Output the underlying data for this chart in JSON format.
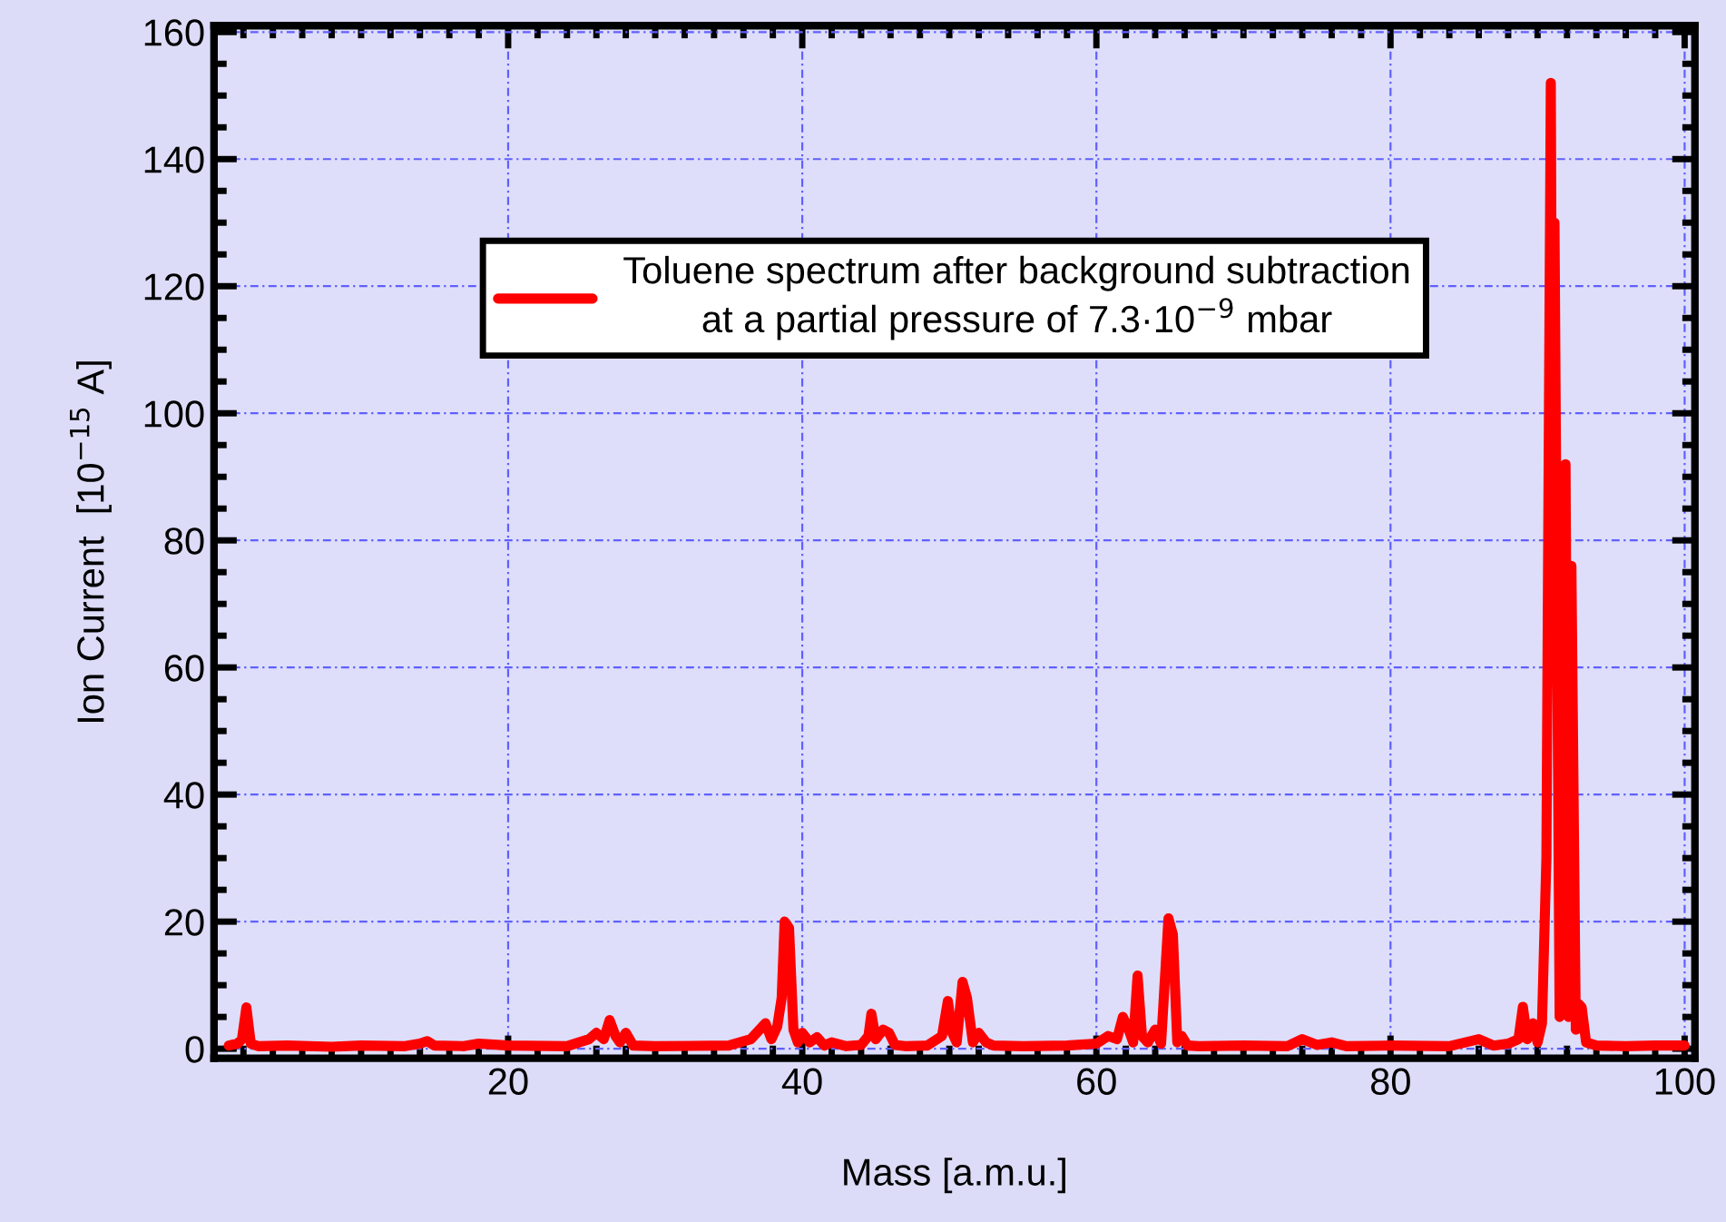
{
  "chart_data": {
    "type": "line",
    "xlabel": "Mass [a.m.u.]",
    "ylabel": "Ion Current  [10$^{−15}$ A]",
    "xlim": [
      0,
      100.7
    ],
    "ylim": [
      -1.5,
      161
    ],
    "xticks": [
      20,
      40,
      60,
      80,
      100
    ],
    "yticks": [
      0,
      20,
      40,
      60,
      80,
      100,
      120,
      140,
      160
    ],
    "grid": true,
    "legend": "top",
    "marker": "none",
    "line_style": "solid",
    "series": [
      {
        "name": "Toluene spectrum after background subtraction\nat a partial pressure of 7.3·10$^{−9}$ mbar",
        "color": "#ff0000",
        "x": [
          1,
          1.6,
          1.9,
          2.2,
          2.5,
          3,
          5,
          8,
          10,
          13,
          14,
          14.5,
          15,
          17,
          18,
          20,
          24,
          25.5,
          26,
          26.5,
          26.9,
          27.3,
          27.6,
          28,
          28.5,
          30,
          35,
          36.5,
          37.5,
          37.9,
          38.3,
          38.6,
          38.8,
          39.1,
          39.4,
          39.7,
          40,
          40.5,
          41,
          41.5,
          42,
          43,
          44,
          44.5,
          44.7,
          45,
          45.5,
          45.9,
          46.3,
          47,
          48.5,
          49.5,
          49.9,
          50.2,
          50.5,
          50.9,
          51.2,
          51.6,
          52,
          52.5,
          53,
          55,
          58,
          60,
          60.8,
          61.4,
          61.8,
          62.2,
          62.5,
          62.8,
          63.1,
          63.5,
          64,
          64.4,
          64.9,
          65.2,
          65.5,
          65.8,
          66.2,
          67,
          70,
          73,
          74,
          75,
          76,
          77,
          80,
          84,
          86,
          87,
          88,
          88.7,
          89,
          89.3,
          89.7,
          90,
          90.3,
          90.6,
          90.9,
          91.05,
          91.15,
          91.5,
          91.9,
          92.1,
          92.3,
          92.6,
          92.8,
          93,
          93.3,
          94,
          96,
          98,
          100
        ],
        "values": [
          0.5,
          0.8,
          1.5,
          6.5,
          0.8,
          0.4,
          0.5,
          0.3,
          0.5,
          0.4,
          0.8,
          1.2,
          0.5,
          0.4,
          0.8,
          0.5,
          0.4,
          1.5,
          2.5,
          1.5,
          4.5,
          2,
          1,
          2.5,
          0.5,
          0.4,
          0.5,
          1.5,
          4,
          1.5,
          3.5,
          8,
          20,
          19,
          3,
          1,
          2.5,
          1,
          1.8,
          0.5,
          1,
          0.4,
          0.6,
          2,
          5.5,
          1.5,
          3,
          2.5,
          0.6,
          0.4,
          0.5,
          2,
          7.5,
          2.5,
          1,
          10.5,
          8,
          1,
          2.5,
          1,
          0.5,
          0.4,
          0.5,
          0.8,
          2,
          1.5,
          5,
          3,
          1,
          11.5,
          2,
          1,
          3,
          0.8,
          20.5,
          18,
          1,
          2,
          0.5,
          0.4,
          0.5,
          0.4,
          1.5,
          0.6,
          1,
          0.4,
          0.5,
          0.4,
          1.5,
          0.5,
          0.8,
          1.5,
          6.6,
          1.5,
          4,
          1,
          4,
          30,
          152,
          60,
          130,
          5,
          92,
          5,
          76,
          3,
          7,
          6.5,
          1,
          0.5,
          0.4,
          0.5,
          0.5
        ]
      }
    ]
  }
}
